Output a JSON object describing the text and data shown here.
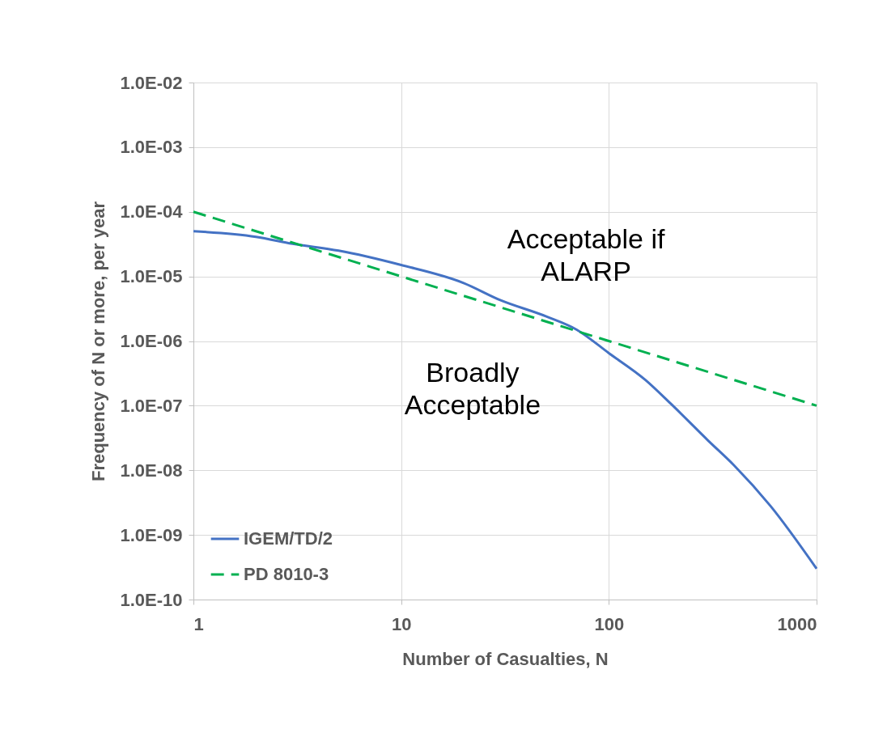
{
  "chart_data": {
    "type": "line",
    "xlabel": "Number of Casualties, N",
    "ylabel": "Frequency of N or more, per year",
    "log": "xy",
    "grid": true,
    "legend": "bottom left",
    "xlim": [
      1,
      1000
    ],
    "xticks": [
      1,
      10,
      100,
      1000
    ],
    "ylim": [
      1e-10,
      0.01
    ],
    "yticks": [
      {
        "value": 1e-10,
        "label": "1.0E-10"
      },
      {
        "value": 1e-09,
        "label": "1.0E-09"
      },
      {
        "value": 1e-08,
        "label": "1.0E-08"
      },
      {
        "value": 1e-07,
        "label": "1.0E-07"
      },
      {
        "value": 1e-06,
        "label": "1.0E-06"
      },
      {
        "value": 1e-05,
        "label": "1.0E-05"
      },
      {
        "value": 0.0001,
        "label": "1.0E-04"
      },
      {
        "value": 0.001,
        "label": "1.0E-03"
      },
      {
        "value": 0.01,
        "label": "1.0E-02"
      }
    ],
    "series": [
      {
        "name": "IGEM/TD/2",
        "color": "#4472c4",
        "line_style": "solid",
        "x": [
          1,
          2,
          3,
          5,
          10,
          20,
          30,
          50,
          70,
          100,
          150,
          200,
          300,
          400,
          600,
          1000
        ],
        "values": [
          5e-05,
          4.1e-05,
          3.2e-05,
          2.5e-05,
          1.5e-05,
          7.9e-06,
          4.3e-06,
          2.4e-06,
          1.5e-06,
          6.5e-07,
          2.5e-07,
          1.05e-07,
          2.9e-08,
          1.2e-08,
          2.8e-09,
          3e-10
        ]
      },
      {
        "name": "PD 8010-3",
        "color": "#00b050",
        "line_style": "dashed",
        "x": [
          1,
          1000
        ],
        "values": [
          0.0001,
          1e-07
        ]
      }
    ],
    "annotations": [
      "Acceptable if\nALARP",
      "Broadly\nAcceptable"
    ]
  }
}
